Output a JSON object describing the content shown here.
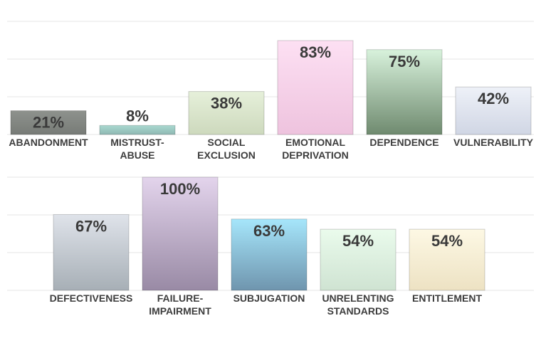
{
  "chart_data": [
    {
      "type": "bar",
      "categories": [
        "ABANDONMENT",
        "MISTRUST-ABUSE",
        "SOCIAL EXCLUSION",
        "EMOTIONAL DEPRIVATION",
        "DEPENDENCE",
        "VULNERABILITY"
      ],
      "category_lines": [
        [
          "ABANDONMENT"
        ],
        [
          "MISTRUST-",
          "ABUSE"
        ],
        [
          "SOCIAL",
          "EXCLUSION"
        ],
        [
          "EMOTIONAL",
          "DEPRIVATION"
        ],
        [
          "DEPENDENCE"
        ],
        [
          "VULNERABILITY"
        ]
      ],
      "values": [
        21,
        8,
        38,
        83,
        75,
        42
      ],
      "value_labels": [
        "21%",
        "8%",
        "38%",
        "83%",
        "75%",
        "42%"
      ],
      "ylim": [
        0,
        100
      ],
      "grid": true,
      "colors": [
        [
          "#8e928d",
          "#777b77"
        ],
        [
          "#a8d8d0",
          "#8fb8b2"
        ],
        [
          "#e6f0da",
          "#cdd9bd"
        ],
        [
          "#fde0f3",
          "#eec3de"
        ],
        [
          "#d8f2dc",
          "#6f8a6f"
        ],
        [
          "#eef1f8",
          "#d0d6e4"
        ]
      ]
    },
    {
      "type": "bar",
      "categories": [
        "DEFECTIVENESS",
        "FAILURE-IMPAIRMENT",
        "SUBJUGATION",
        "UNRELENTING STANDARDS",
        "ENTITLEMENT"
      ],
      "category_lines": [
        [
          "DEFECTIVENESS"
        ],
        [
          "FAILURE-",
          "IMPAIRMENT"
        ],
        [
          "SUBJUGATION"
        ],
        [
          "UNRELENTING",
          "STANDARDS"
        ],
        [
          "ENTITLEMENT"
        ]
      ],
      "values": [
        67,
        100,
        63,
        54,
        54
      ],
      "value_labels": [
        "67%",
        "100%",
        "63%",
        "54%",
        "54%"
      ],
      "ylim": [
        0,
        100
      ],
      "grid": true,
      "colors": [
        [
          "#dfe3ea",
          "#a7afb6"
        ],
        [
          "#e3d4ec",
          "#998aa5"
        ],
        [
          "#a6e6fb",
          "#6f95ae"
        ],
        [
          "#eafbec",
          "#cfe3d2"
        ],
        [
          "#fdf8e4",
          "#ede2c3"
        ]
      ]
    }
  ]
}
